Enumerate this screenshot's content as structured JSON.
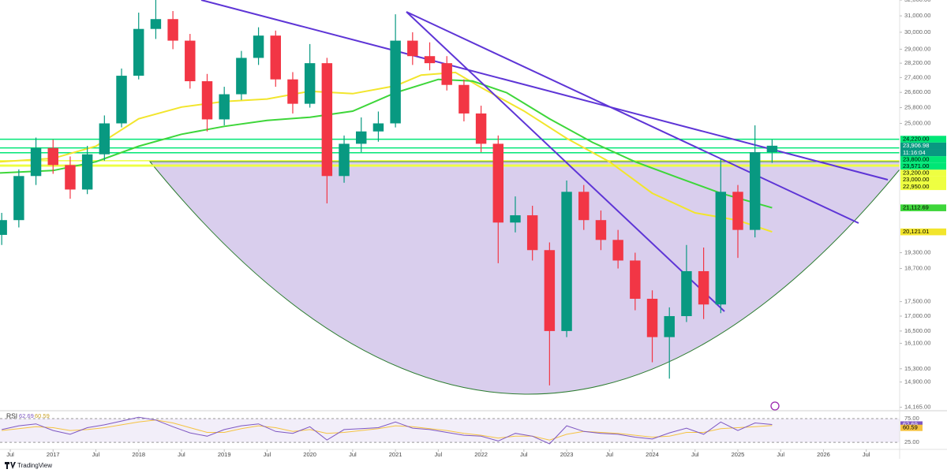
{
  "chart_data": {
    "type": "candlestick",
    "x": [
      2016.4,
      2016.6,
      2016.8,
      2017.0,
      2017.2,
      2017.4,
      2017.6,
      2017.8,
      2018.0,
      2018.2,
      2018.4,
      2018.6,
      2018.8,
      2019.0,
      2019.2,
      2019.4,
      2019.6,
      2019.8,
      2020.0,
      2020.2,
      2020.4,
      2020.6,
      2020.8,
      2021.0,
      2021.2,
      2021.4,
      2021.6,
      2021.8,
      2022.0,
      2022.2,
      2022.4,
      2022.6,
      2022.8,
      2023.0,
      2023.2,
      2023.4,
      2023.6,
      2023.8,
      2024.0,
      2024.2,
      2024.4,
      2024.6,
      2024.8,
      2025.0,
      2025.2,
      2025.4
    ],
    "open": [
      20000,
      20600,
      22500,
      23800,
      23000,
      21900,
      23500,
      25000,
      27500,
      30200,
      30800,
      29500,
      27200,
      25200,
      26500,
      28500,
      29800,
      27300,
      26000,
      28200,
      22500,
      24000,
      24600,
      25000,
      29500,
      28600,
      28200,
      27000,
      25500,
      24000,
      20500,
      20800,
      19400,
      16500,
      21800,
      20600,
      19800,
      19000,
      17600,
      16300,
      17000,
      18600,
      17400,
      21800,
      20200,
      23600
    ],
    "high": [
      20900,
      22800,
      24300,
      24200,
      23400,
      23900,
      25400,
      27900,
      31200,
      32000,
      31300,
      29900,
      27600,
      26900,
      28900,
      30300,
      30100,
      27700,
      29300,
      28500,
      24400,
      25300,
      25600,
      31100,
      30000,
      29400,
      28600,
      27300,
      25900,
      24400,
      21600,
      21200,
      19700,
      22300,
      22100,
      21000,
      20200,
      19300,
      17900,
      17300,
      19600,
      19500,
      23300,
      22100,
      24900,
      24200
    ],
    "low": [
      19600,
      20300,
      22100,
      22600,
      21500,
      21700,
      23200,
      24800,
      27300,
      29600,
      29000,
      26800,
      24600,
      24900,
      26200,
      28100,
      26900,
      25500,
      25800,
      21300,
      22200,
      23600,
      24100,
      24800,
      28100,
      27800,
      26700,
      25100,
      23600,
      18900,
      20100,
      19000,
      14800,
      16300,
      20200,
      19400,
      18700,
      17200,
      15500,
      15000,
      16800,
      16900,
      17100,
      19100,
      19900,
      23100
    ],
    "close": [
      20600,
      22500,
      23800,
      23000,
      21900,
      23500,
      25000,
      27500,
      30200,
      30800,
      29500,
      27200,
      25200,
      26500,
      28500,
      29800,
      27300,
      26000,
      28200,
      22500,
      24000,
      24600,
      25000,
      29500,
      28600,
      28200,
      27000,
      25500,
      24000,
      20500,
      20800,
      19400,
      16500,
      21800,
      20600,
      19800,
      19000,
      17600,
      16300,
      17000,
      18600,
      17400,
      21800,
      20200,
      23600,
      23906.98
    ],
    "up_color": "#089981",
    "down_color": "#f23645",
    "last_label": "23,906.98",
    "countdown": "11:16:04",
    "log_scale": true,
    "ylim": [
      14090,
      32000
    ],
    "yticks": [
      {
        "value": 32000,
        "label": "32,000.00"
      },
      {
        "value": 31000,
        "label": "31,000.00"
      },
      {
        "value": 30000,
        "label": "30,000.00"
      },
      {
        "value": 29000,
        "label": "29,000.00"
      },
      {
        "value": 28200,
        "label": "28,200.00"
      },
      {
        "value": 27400,
        "label": "27,400.00"
      },
      {
        "value": 26600,
        "label": "26,600.00"
      },
      {
        "value": 25800,
        "label": "25,800.00"
      },
      {
        "value": 25000,
        "label": "25,000.00"
      },
      {
        "value": 19300,
        "label": "19,300.00"
      },
      {
        "value": 18700,
        "label": "18,700.00"
      },
      {
        "value": 17500,
        "label": "17,500.00"
      },
      {
        "value": 17000,
        "label": "17,000.00"
      },
      {
        "value": 16500,
        "label": "16,500.00"
      },
      {
        "value": 16100,
        "label": "16,100.00"
      },
      {
        "value": 15300,
        "label": "15,300.00"
      },
      {
        "value": 14900,
        "label": "14,900.00"
      },
      {
        "value": 14165,
        "label": "14,165.00"
      }
    ],
    "xlim": [
      2016.38,
      2026.89
    ],
    "xticks": [
      {
        "value": 2016.5,
        "label": "Jul"
      },
      2017,
      {
        "value": 2017.5,
        "label": "Jul"
      },
      2018,
      {
        "value": 2018.5,
        "label": "Jul"
      },
      2019,
      {
        "value": 2019.5,
        "label": "Jul"
      },
      2020,
      {
        "value": 2020.5,
        "label": "Jul"
      },
      2021,
      {
        "value": 2021.5,
        "label": "Jul"
      },
      2022,
      {
        "value": 2022.5,
        "label": "Jul"
      },
      2023,
      {
        "value": 2023.5,
        "label": "Jul"
      },
      2024,
      {
        "value": 2024.5,
        "label": "Jul"
      },
      2025,
      {
        "value": 2025.5,
        "label": "Jul"
      },
      2026,
      {
        "value": 2026.5,
        "label": "Jul"
      }
    ],
    "moving_averages": [
      {
        "color": "#f2e52c",
        "x": [
          2016.38,
          2017.0,
          2017.5,
          2018.0,
          2018.5,
          2019.0,
          2019.5,
          2020.0,
          2020.5,
          2021.0,
          2021.3,
          2021.7,
          2022.0,
          2022.5,
          2023.0,
          2023.5,
          2024.0,
          2024.5,
          2025.0,
          2025.4
        ],
        "values": [
          23150,
          23310,
          23880,
          25230,
          25830,
          26120,
          26250,
          26660,
          26530,
          26950,
          27540,
          27680,
          26860,
          25630,
          24260,
          23150,
          21740,
          20900,
          20590,
          20121.01
        ],
        "last_label": "20,121.01"
      },
      {
        "color": "#3ed63a",
        "x": [
          2016.38,
          2017.0,
          2017.5,
          2018.0,
          2018.5,
          2019.0,
          2019.5,
          2020.0,
          2020.5,
          2021.0,
          2021.5,
          2021.9,
          2022.3,
          2022.8,
          2023.3,
          2023.8,
          2024.3,
          2024.8,
          2025.4
        ],
        "values": [
          22640,
          22750,
          23150,
          23880,
          24460,
          24850,
          25150,
          25310,
          25620,
          26580,
          27300,
          27210,
          26580,
          25230,
          24070,
          23150,
          22430,
          21740,
          21112.69
        ],
        "last_label": "21,112.69"
      }
    ],
    "levels": [
      {
        "value": 24220,
        "label": "24,220.00",
        "color": "#00e676"
      },
      {
        "value": 23800,
        "label": "23,800.00",
        "color": "#00e676"
      },
      {
        "value": 23571,
        "label": "23,571.00",
        "color": "#00e676"
      },
      {
        "value": 23200,
        "label": "23,200.00",
        "color": "#eeff41"
      },
      {
        "value": 23000,
        "label": "23,000.00",
        "color": "#eeff41"
      },
      {
        "value": 22950,
        "label": "22,950.00",
        "color": "#eeff41"
      }
    ],
    "rsi": {
      "title": "RSI",
      "values": [
        52,
        60,
        64,
        50,
        42,
        56,
        62,
        70,
        78,
        72,
        58,
        45,
        38,
        52,
        60,
        64,
        48,
        44,
        58,
        30,
        52,
        54,
        56,
        68,
        55,
        52,
        46,
        40,
        38,
        28,
        44,
        38,
        22,
        60,
        48,
        44,
        42,
        36,
        32,
        45,
        55,
        42,
        68,
        50,
        66,
        62.69
      ],
      "signal": [
        50,
        54,
        58,
        56,
        50,
        52,
        56,
        62,
        68,
        72,
        66,
        56,
        46,
        46,
        54,
        60,
        56,
        48,
        52,
        44,
        46,
        50,
        54,
        60,
        58,
        54,
        50,
        44,
        40,
        34,
        38,
        38,
        30,
        42,
        48,
        46,
        44,
        40,
        36,
        38,
        46,
        46,
        54,
        56,
        58,
        60.59
      ],
      "color": "#7e57c2",
      "signal_color": "#f5c342",
      "ylim": [
        12,
        90
      ],
      "yticks": [
        {
          "value": 75,
          "label": "75.00"
        },
        {
          "value": 25,
          "label": "25.00"
        }
      ]
    }
  },
  "footer": {
    "brand": "TradingView"
  }
}
